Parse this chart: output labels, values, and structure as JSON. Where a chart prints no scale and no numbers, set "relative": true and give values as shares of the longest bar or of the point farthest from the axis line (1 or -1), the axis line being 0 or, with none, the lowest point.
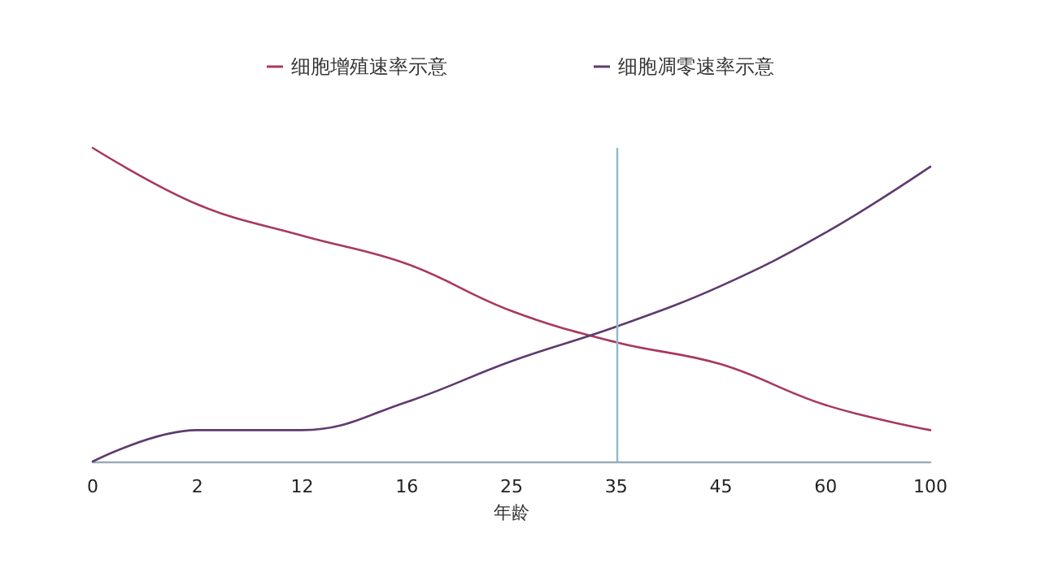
{
  "chart_data": {
    "type": "line",
    "relative": true,
    "xlabel": "年龄",
    "categories": [
      "0",
      "2",
      "12",
      "16",
      "25",
      "35",
      "45",
      "60",
      "100"
    ],
    "series": [
      {
        "name": "细胞增殖速率示意",
        "color": "#a8385e",
        "values": [
          1,
          0.82,
          0.72,
          0.63,
          0.48,
          0.38,
          0.31,
          0.18,
          0.1
        ]
      },
      {
        "name": "细胞凋零速率示意",
        "color": "#5e3a6e",
        "values": [
          0,
          0.1,
          0.1,
          0.19,
          0.32,
          0.43,
          0.56,
          0.73,
          0.94
        ]
      }
    ],
    "ref_lines": [
      {
        "axis": "x",
        "value": "35",
        "color": "#8fb8c8"
      }
    ],
    "legend": "top",
    "grid": false,
    "marker": "none",
    "line_style": "solid"
  }
}
